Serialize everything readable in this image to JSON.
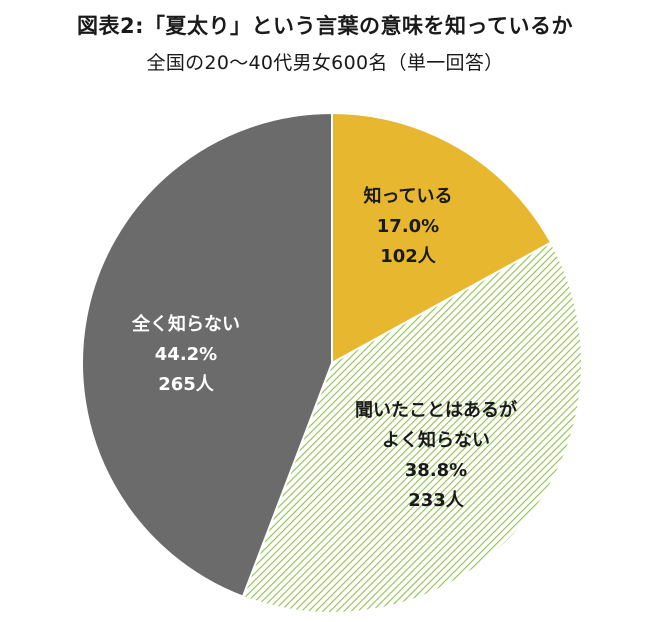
{
  "header": {
    "title": "図表2:「夏太り」という言葉の意味を知っているか",
    "subtitle": "全国の20～40代男女600名（単一回答）"
  },
  "chart_data": {
    "type": "pie",
    "title": "図表2:「夏太り」という言葉の意味を知っているか",
    "subtitle": "全国の20～40代男女600名（単一回答）",
    "start": "12 o'clock, clockwise",
    "slices": [
      {
        "label": "知っている",
        "label_lines": [
          "知っている"
        ],
        "percent_label": "17.0%",
        "count_label": "102人",
        "value": 17.0,
        "count": 102,
        "color": "#e7b82f",
        "pattern": "solid"
      },
      {
        "label": "聞いたことはあるがよく知らない",
        "label_lines": [
          "聞いたことはあるが",
          "よく知らない"
        ],
        "percent_label": "38.8%",
        "count_label": "233人",
        "value": 38.8,
        "count": 233,
        "color": "#8fc24e",
        "pattern": "diagonal-hatch"
      },
      {
        "label": "全く知らない",
        "label_lines": [
          "全く知らない"
        ],
        "percent_label": "44.2%",
        "count_label": "265人",
        "value": 44.2,
        "count": 265,
        "color": "#6b6b6b",
        "pattern": "solid"
      }
    ]
  }
}
